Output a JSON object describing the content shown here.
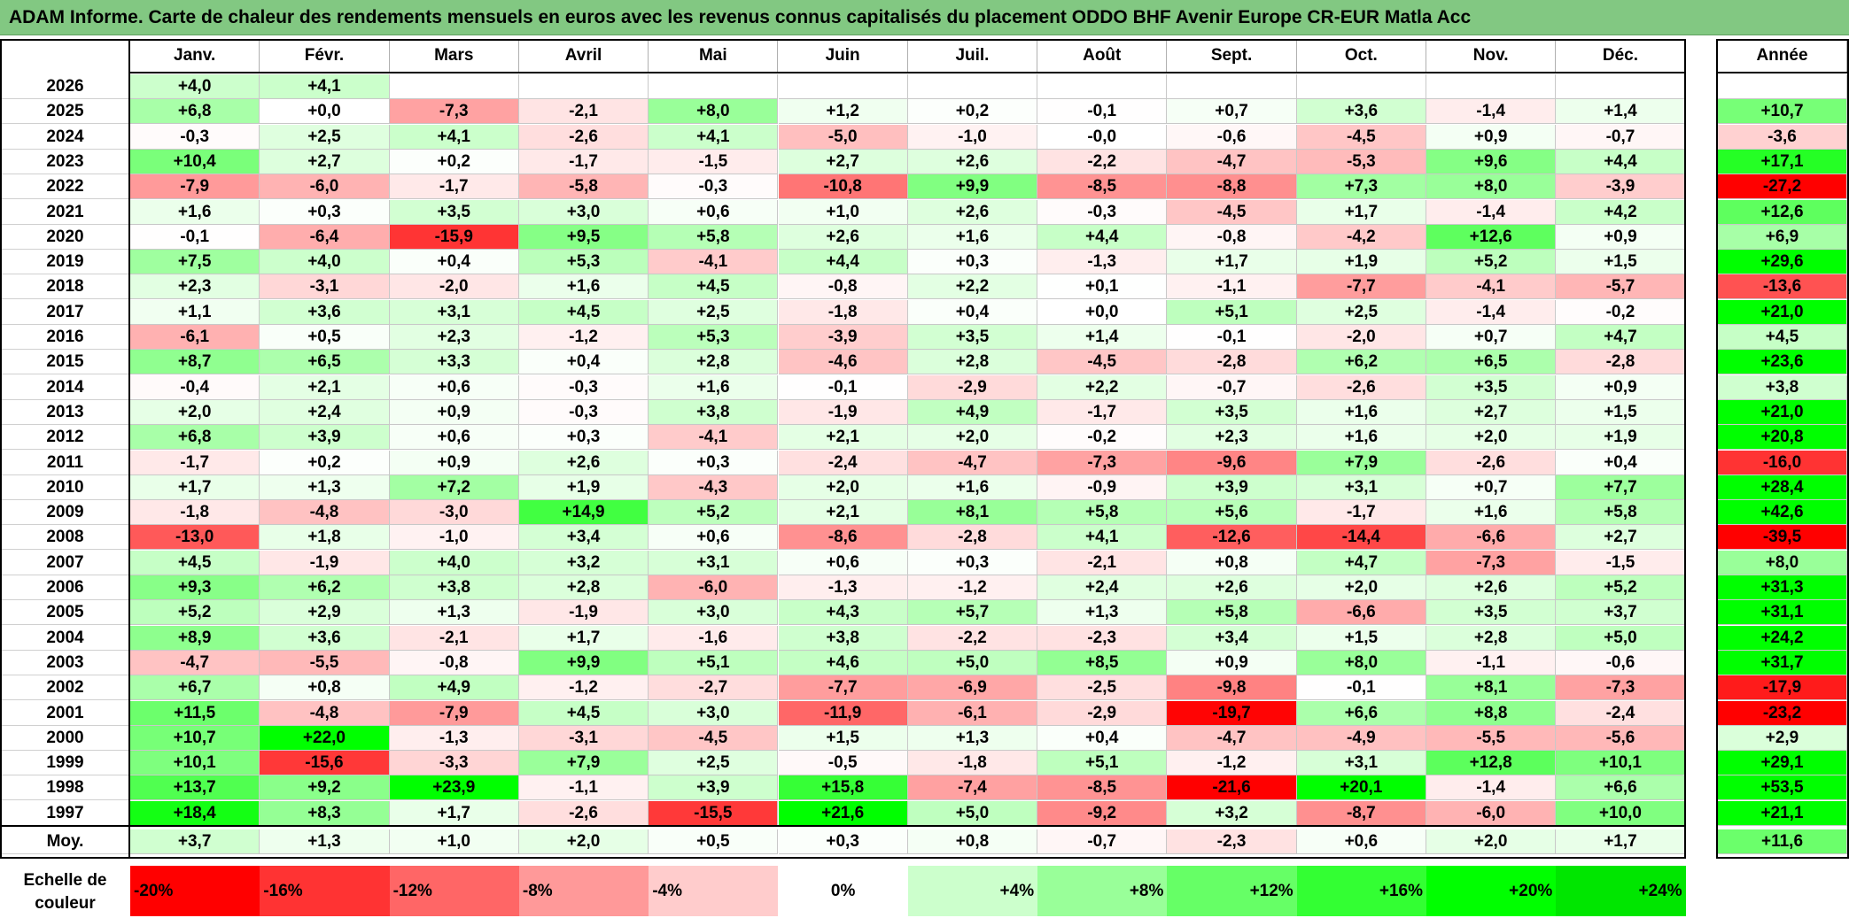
{
  "title": "ADAM Informe. Carte de chaleur des rendements mensuels en euros avec les revenus connus capitalisés du placement ODDO BHF Avenir Europe CR-EUR Matla Acc",
  "chart_data": {
    "type": "heatmap",
    "title": "ADAM Informe. Carte de chaleur des rendements mensuels en euros avec les revenus connus capitalisés du placement ODDO BHF Avenir Europe CR-EUR Matla Acc",
    "columns": [
      "Janv.",
      "Févr.",
      "Mars",
      "Avril",
      "Mai",
      "Juin",
      "Juil.",
      "Août",
      "Sept.",
      "Oct.",
      "Nov.",
      "Déc."
    ],
    "annual_header": "Année",
    "rows": [
      {
        "year": "2026",
        "months": [
          "+4,0",
          "+4,1",
          "",
          "",
          "",
          "",
          "",
          "",
          "",
          "",
          "",
          ""
        ],
        "annual": ""
      },
      {
        "year": "2025",
        "months": [
          "+6,8",
          "+0,0",
          "-7,3",
          "-2,1",
          "+8,0",
          "+1,2",
          "+0,2",
          "-0,1",
          "+0,7",
          "+3,6",
          "-1,4",
          "+1,4"
        ],
        "annual": "+10,7"
      },
      {
        "year": "2024",
        "months": [
          "-0,3",
          "+2,5",
          "+4,1",
          "-2,6",
          "+4,1",
          "-5,0",
          "-1,0",
          "-0,0",
          "-0,6",
          "-4,5",
          "+0,9",
          "-0,7"
        ],
        "annual": "-3,6"
      },
      {
        "year": "2023",
        "months": [
          "+10,4",
          "+2,7",
          "+0,2",
          "-1,7",
          "-1,5",
          "+2,7",
          "+2,6",
          "-2,2",
          "-4,7",
          "-5,3",
          "+9,6",
          "+4,4"
        ],
        "annual": "+17,1"
      },
      {
        "year": "2022",
        "months": [
          "-7,9",
          "-6,0",
          "-1,7",
          "-5,8",
          "-0,3",
          "-10,8",
          "+9,9",
          "-8,5",
          "-8,8",
          "+7,3",
          "+8,0",
          "-3,9"
        ],
        "annual": "-27,2"
      },
      {
        "year": "2021",
        "months": [
          "+1,6",
          "+0,3",
          "+3,5",
          "+3,0",
          "+0,6",
          "+1,0",
          "+2,6",
          "-0,3",
          "-4,5",
          "+1,7",
          "-1,4",
          "+4,2"
        ],
        "annual": "+12,6"
      },
      {
        "year": "2020",
        "months": [
          "-0,1",
          "-6,4",
          "-15,9",
          "+9,5",
          "+5,8",
          "+2,6",
          "+1,6",
          "+4,4",
          "-0,8",
          "-4,2",
          "+12,6",
          "+0,9"
        ],
        "annual": "+6,9"
      },
      {
        "year": "2019",
        "months": [
          "+7,5",
          "+4,0",
          "+0,4",
          "+5,3",
          "-4,1",
          "+4,4",
          "+0,3",
          "-1,3",
          "+1,7",
          "+1,9",
          "+5,2",
          "+1,5"
        ],
        "annual": "+29,6"
      },
      {
        "year": "2018",
        "months": [
          "+2,3",
          "-3,1",
          "-2,0",
          "+1,6",
          "+4,5",
          "-0,8",
          "+2,2",
          "+0,1",
          "-1,1",
          "-7,7",
          "-4,1",
          "-5,7"
        ],
        "annual": "-13,6"
      },
      {
        "year": "2017",
        "months": [
          "+1,1",
          "+3,6",
          "+3,1",
          "+4,5",
          "+2,5",
          "-1,8",
          "+0,4",
          "+0,0",
          "+5,1",
          "+2,5",
          "-1,4",
          "-0,2"
        ],
        "annual": "+21,0"
      },
      {
        "year": "2016",
        "months": [
          "-6,1",
          "+0,5",
          "+2,3",
          "-1,2",
          "+5,3",
          "-3,9",
          "+3,5",
          "+1,4",
          "-0,1",
          "-2,0",
          "+0,7",
          "+4,7"
        ],
        "annual": "+4,5"
      },
      {
        "year": "2015",
        "months": [
          "+8,7",
          "+6,5",
          "+3,3",
          "+0,4",
          "+2,8",
          "-4,6",
          "+2,8",
          "-4,5",
          "-2,8",
          "+6,2",
          "+6,5",
          "-2,8"
        ],
        "annual": "+23,6"
      },
      {
        "year": "2014",
        "months": [
          "-0,4",
          "+2,1",
          "+0,6",
          "-0,3",
          "+1,6",
          "-0,1",
          "-2,9",
          "+2,2",
          "-0,7",
          "-2,6",
          "+3,5",
          "+0,9"
        ],
        "annual": "+3,8"
      },
      {
        "year": "2013",
        "months": [
          "+2,0",
          "+2,4",
          "+0,9",
          "-0,3",
          "+3,8",
          "-1,9",
          "+4,9",
          "-1,7",
          "+3,5",
          "+1,6",
          "+2,7",
          "+1,5"
        ],
        "annual": "+21,0"
      },
      {
        "year": "2012",
        "months": [
          "+6,8",
          "+3,9",
          "+0,6",
          "+0,3",
          "-4,1",
          "+2,1",
          "+2,0",
          "-0,2",
          "+2,3",
          "+1,6",
          "+2,0",
          "+1,9"
        ],
        "annual": "+20,8"
      },
      {
        "year": "2011",
        "months": [
          "-1,7",
          "+0,2",
          "+0,9",
          "+2,6",
          "+0,3",
          "-2,4",
          "-4,7",
          "-7,3",
          "-9,6",
          "+7,9",
          "-2,6",
          "+0,4"
        ],
        "annual": "-16,0"
      },
      {
        "year": "2010",
        "months": [
          "+1,7",
          "+1,3",
          "+7,2",
          "+1,9",
          "-4,3",
          "+2,0",
          "+1,6",
          "-0,9",
          "+3,9",
          "+3,1",
          "+0,7",
          "+7,7"
        ],
        "annual": "+28,4"
      },
      {
        "year": "2009",
        "months": [
          "-1,8",
          "-4,8",
          "-3,0",
          "+14,9",
          "+5,2",
          "+2,1",
          "+8,1",
          "+5,8",
          "+5,6",
          "-1,7",
          "+1,6",
          "+5,8"
        ],
        "annual": "+42,6"
      },
      {
        "year": "2008",
        "months": [
          "-13,0",
          "+1,8",
          "-1,0",
          "+3,4",
          "+0,6",
          "-8,6",
          "-2,8",
          "+4,1",
          "-12,6",
          "-14,4",
          "-6,6",
          "+2,7"
        ],
        "annual": "-39,5"
      },
      {
        "year": "2007",
        "months": [
          "+4,5",
          "-1,9",
          "+4,0",
          "+3,2",
          "+3,1",
          "+0,6",
          "+0,3",
          "-2,1",
          "+0,8",
          "+4,7",
          "-7,3",
          "-1,5"
        ],
        "annual": "+8,0"
      },
      {
        "year": "2006",
        "months": [
          "+9,3",
          "+6,2",
          "+3,8",
          "+2,8",
          "-6,0",
          "-1,3",
          "-1,2",
          "+2,4",
          "+2,6",
          "+2,0",
          "+2,6",
          "+5,2"
        ],
        "annual": "+31,3"
      },
      {
        "year": "2005",
        "months": [
          "+5,2",
          "+2,9",
          "+1,3",
          "-1,9",
          "+3,0",
          "+4,3",
          "+5,7",
          "+1,3",
          "+5,8",
          "-6,6",
          "+3,5",
          "+3,7"
        ],
        "annual": "+31,1"
      },
      {
        "year": "2004",
        "months": [
          "+8,9",
          "+3,6",
          "-2,1",
          "+1,7",
          "-1,6",
          "+3,8",
          "-2,2",
          "-2,3",
          "+3,4",
          "+1,5",
          "+2,8",
          "+5,0"
        ],
        "annual": "+24,2"
      },
      {
        "year": "2003",
        "months": [
          "-4,7",
          "-5,5",
          "-0,8",
          "+9,9",
          "+5,1",
          "+4,6",
          "+5,0",
          "+8,5",
          "+0,9",
          "+8,0",
          "-1,1",
          "-0,6"
        ],
        "annual": "+31,7"
      },
      {
        "year": "2002",
        "months": [
          "+6,7",
          "+0,8",
          "+4,9",
          "-1,2",
          "-2,7",
          "-7,7",
          "-6,9",
          "-2,5",
          "-9,8",
          "-0,1",
          "+8,1",
          "-7,3"
        ],
        "annual": "-17,9"
      },
      {
        "year": "2001",
        "months": [
          "+11,5",
          "-4,8",
          "-7,9",
          "+4,5",
          "+3,0",
          "-11,9",
          "-6,1",
          "-2,9",
          "-19,7",
          "+6,6",
          "+8,8",
          "-2,4"
        ],
        "annual": "-23,2"
      },
      {
        "year": "2000",
        "months": [
          "+10,7",
          "+22,0",
          "-1,3",
          "-3,1",
          "-4,5",
          "+1,5",
          "+1,3",
          "+0,4",
          "-4,7",
          "-4,9",
          "-5,5",
          "-5,6"
        ],
        "annual": "+2,9"
      },
      {
        "year": "1999",
        "months": [
          "+10,1",
          "-15,6",
          "-3,3",
          "+7,9",
          "+2,5",
          "-0,5",
          "-1,8",
          "+5,1",
          "-1,2",
          "+3,1",
          "+12,8",
          "+10,1"
        ],
        "annual": "+29,1"
      },
      {
        "year": "1998",
        "months": [
          "+13,7",
          "+9,2",
          "+23,9",
          "-1,1",
          "+3,9",
          "+15,8",
          "-7,4",
          "-8,5",
          "-21,6",
          "+20,1",
          "-1,4",
          "+6,6"
        ],
        "annual": "+53,5"
      },
      {
        "year": "1997",
        "months": [
          "+18,4",
          "+8,3",
          "+1,7",
          "-2,6",
          "-15,5",
          "+21,6",
          "+5,0",
          "-9,2",
          "+3,2",
          "-8,7",
          "-6,0",
          "+10,0"
        ],
        "annual": "+21,1"
      }
    ],
    "average": {
      "label": "Moy.",
      "months": [
        "+3,7",
        "+1,3",
        "+1,0",
        "+2,0",
        "+0,5",
        "+0,3",
        "+0,8",
        "-0,7",
        "-2,3",
        "+0,6",
        "+2,0",
        "+1,7"
      ],
      "annual": "+11,6"
    },
    "color_scale": {
      "label_line1": "Echelle de",
      "label_line2": "couleur",
      "steps": [
        {
          "label": "-20%",
          "value": -20,
          "color": "#ff0000"
        },
        {
          "label": "-16%",
          "value": -16,
          "color": "#ff3333"
        },
        {
          "label": "-12%",
          "value": -12,
          "color": "#ff6666"
        },
        {
          "label": "-8%",
          "value": -8,
          "color": "#ff9999"
        },
        {
          "label": "-4%",
          "value": -4,
          "color": "#ffcccc"
        },
        {
          "label": "0%",
          "value": 0,
          "color": "#ffffff"
        },
        {
          "label": "+4%",
          "value": 4,
          "color": "#ccffcc"
        },
        {
          "label": "+8%",
          "value": 8,
          "color": "#99ff99"
        },
        {
          "label": "+12%",
          "value": 12,
          "color": "#66ff66"
        },
        {
          "label": "+16%",
          "value": 16,
          "color": "#33ff33"
        },
        {
          "label": "+20%",
          "value": 20,
          "color": "#00ff00"
        },
        {
          "label": "+24%",
          "value": 24,
          "color": "#00e600"
        }
      ]
    }
  }
}
